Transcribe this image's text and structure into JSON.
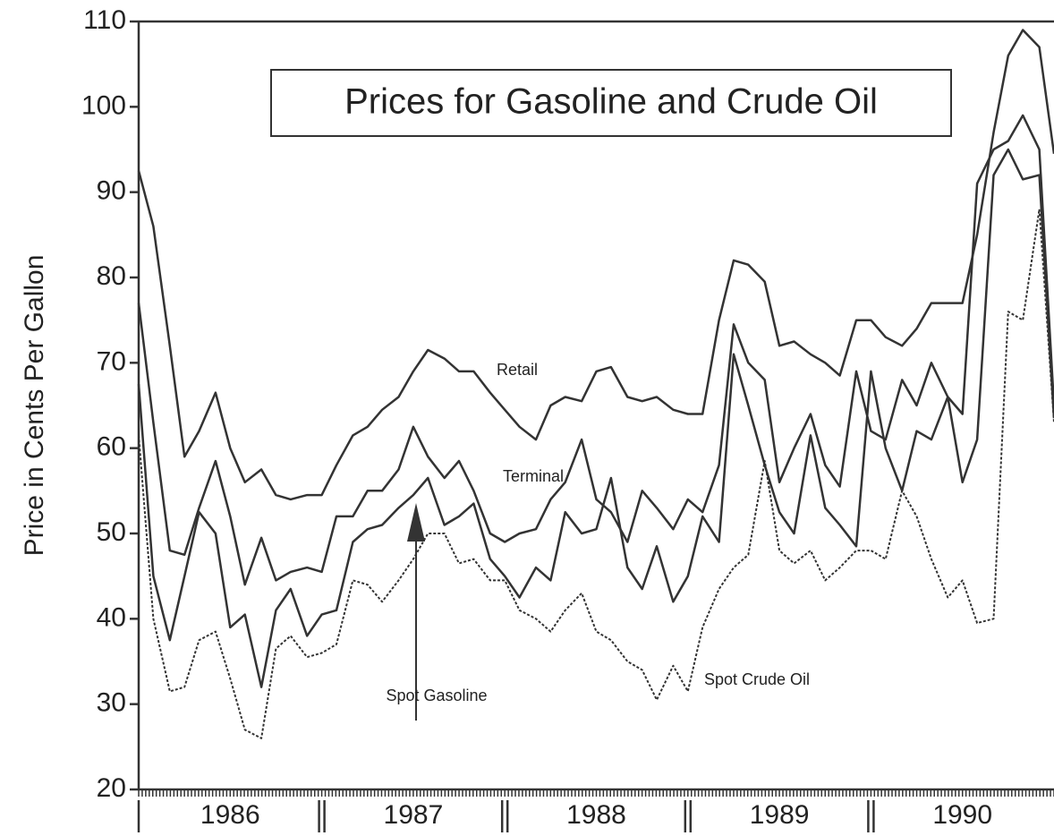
{
  "chart_data": {
    "type": "line",
    "title": "Prices for Gasoline and Crude Oil",
    "ylabel": "Price in Cents Per Gallon",
    "xlim": [
      1986,
      1991
    ],
    "ylim": [
      20,
      110
    ],
    "yticks": [
      20,
      30,
      40,
      50,
      60,
      70,
      80,
      90,
      100,
      110
    ],
    "xticks": [
      {
        "value": 1986.5,
        "label": "1986"
      },
      {
        "value": 1987.5,
        "label": "1987"
      },
      {
        "value": 1988.5,
        "label": "1988"
      },
      {
        "value": 1989.5,
        "label": "1989"
      },
      {
        "value": 1990.5,
        "label": "1990"
      }
    ],
    "x": [
      1986,
      1986.08,
      1986.17,
      1986.25,
      1986.33,
      1986.42,
      1986.5,
      1986.58,
      1986.67,
      1986.75,
      1986.83,
      1986.92,
      1987,
      1987.08,
      1987.17,
      1987.25,
      1987.33,
      1987.42,
      1987.5,
      1987.58,
      1987.67,
      1987.75,
      1987.83,
      1987.92,
      1988,
      1988.08,
      1988.17,
      1988.25,
      1988.33,
      1988.42,
      1988.5,
      1988.58,
      1988.67,
      1988.75,
      1988.83,
      1988.92,
      1989,
      1989.08,
      1989.17,
      1989.25,
      1989.33,
      1989.42,
      1989.5,
      1989.58,
      1989.67,
      1989.75,
      1989.83,
      1989.92,
      1990,
      1990.08,
      1990.17,
      1990.25,
      1990.33,
      1990.42,
      1990.5,
      1990.58,
      1990.67,
      1990.75,
      1990.83,
      1990.92,
      1991
    ],
    "series": [
      {
        "name": "Retail",
        "color": "#333333",
        "line_style": "solid",
        "values": [
          92.5,
          86,
          72,
          59,
          62,
          66.5,
          60,
          56,
          57.5,
          54.5,
          54,
          54.5,
          54.5,
          58,
          61.5,
          62.5,
          64.5,
          66,
          69,
          71.5,
          70.5,
          69,
          69,
          66.5,
          64.5,
          62.5,
          61,
          65,
          66,
          65.5,
          69,
          69.5,
          66,
          65.5,
          66,
          64.5,
          64,
          64,
          75,
          82,
          81.5,
          79.5,
          72,
          72.5,
          71,
          70,
          68.5,
          75,
          75,
          73,
          72,
          74,
          77,
          77,
          77,
          85,
          97,
          106,
          109,
          107,
          94.5
        ]
      },
      {
        "name": "Terminal",
        "color": "#333333",
        "line_style": "solid",
        "values": [
          77,
          63,
          48,
          47.5,
          53,
          58.5,
          52,
          44,
          49.5,
          44.5,
          45.5,
          46,
          45.5,
          52,
          52,
          55,
          55,
          57.5,
          62.5,
          59,
          56.5,
          58.5,
          55,
          50,
          49,
          50,
          50.5,
          54,
          56,
          61,
          54,
          52.5,
          49,
          55,
          53,
          50.5,
          54,
          52.5,
          58,
          74.5,
          70,
          68,
          56,
          60,
          64,
          58,
          55.5,
          69,
          62,
          61,
          68,
          65,
          70,
          66,
          64,
          91,
          95,
          96,
          99,
          95,
          65
        ]
      },
      {
        "name": "Spot Gasoline",
        "color": "#333333",
        "line_style": "solid",
        "values": [
          67.5,
          45,
          37.5,
          45,
          52.5,
          50,
          39,
          40.5,
          32,
          41,
          43.5,
          38,
          40.5,
          41,
          49,
          50.5,
          51,
          53,
          54.5,
          56.5,
          51,
          52,
          53.5,
          47,
          45,
          42.5,
          46,
          44.5,
          52.5,
          50,
          50.5,
          56.5,
          46,
          43.5,
          48.5,
          42,
          45,
          52,
          49,
          71,
          65,
          58,
          52.5,
          50,
          61.5,
          53,
          51,
          48.5,
          69,
          60,
          55,
          62,
          61,
          66,
          56,
          61,
          92,
          95,
          91.5,
          92,
          63.5
        ]
      },
      {
        "name": "Spot Crude Oil",
        "color": "#333333",
        "line_style": "dotted",
        "values": [
          61.5,
          40,
          31.5,
          32,
          37.5,
          38.5,
          33,
          27,
          26,
          36.5,
          38,
          35.5,
          36,
          37,
          44.5,
          44,
          42,
          44.5,
          47,
          50,
          50,
          46.5,
          47,
          44.5,
          44.5,
          41,
          40,
          38.5,
          41,
          43,
          38.5,
          37.5,
          35,
          34,
          30.5,
          34.5,
          31.5,
          39,
          43.5,
          46,
          47.5,
          58.5,
          48,
          46.5,
          48,
          44.5,
          46,
          48,
          48,
          47,
          55,
          52,
          47,
          42.5,
          44.5,
          39.5,
          40,
          76,
          75,
          88,
          63
        ]
      }
    ]
  }
}
